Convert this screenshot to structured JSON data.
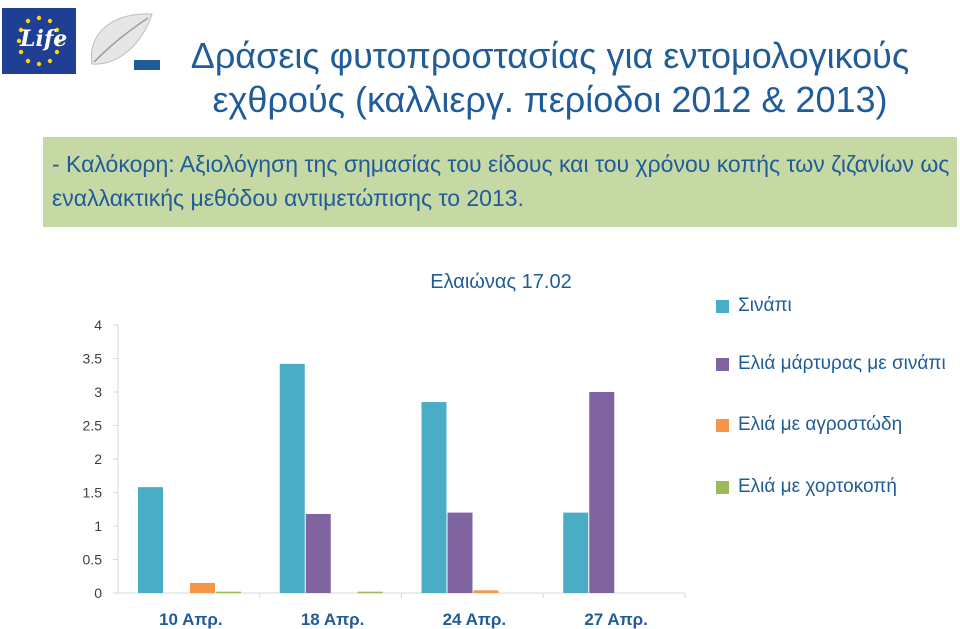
{
  "logos": {
    "eu_life_text": "Life"
  },
  "title": "Δράσεις φυτοπροστασίας για εντομολογικούς εχθρούς (καλλιεργ. περίοδοι 2012 & 2013)",
  "subtitle": {
    "prefix": "- Καλόκορη: ",
    "text": "Αξιολόγηση της σημασίας του είδους και του χρόνου κοπής των ζιζανίων ως εναλλακτικής μεθόδου αντιμετώπισης  το 2013."
  },
  "colors": {
    "title": "#1f5c99",
    "subtitle_bg": "#c6d9a4",
    "series": [
      "#4bacc6",
      "#8064a2",
      "#f79646",
      "#9bbb59"
    ]
  },
  "chart_data": {
    "type": "bar",
    "title": "Ελαιώνας 17.02",
    "categories": [
      "10 Απρ.",
      "18 Απρ.",
      "24 Απρ.",
      "27 Απρ."
    ],
    "series": [
      {
        "name": "Σινάπι",
        "values": [
          1.58,
          3.42,
          2.85,
          1.2
        ]
      },
      {
        "name": "Ελιά μάρτυρας με σινάπι",
        "values": [
          0,
          1.18,
          1.2,
          3.0
        ]
      },
      {
        "name": "Ελιά με αγροστώδη",
        "values": [
          0.15,
          0,
          0.04,
          0
        ]
      },
      {
        "name": "Ελιά με χορτοκοπή",
        "values": [
          0.02,
          0.02,
          0,
          0
        ]
      }
    ],
    "yticks": [
      "0",
      "0.5",
      "1",
      "1.5",
      "2",
      "2.5",
      "3",
      "3.5",
      "4"
    ],
    "ylim": [
      0,
      4
    ],
    "grid": false,
    "legend_position": "right"
  }
}
